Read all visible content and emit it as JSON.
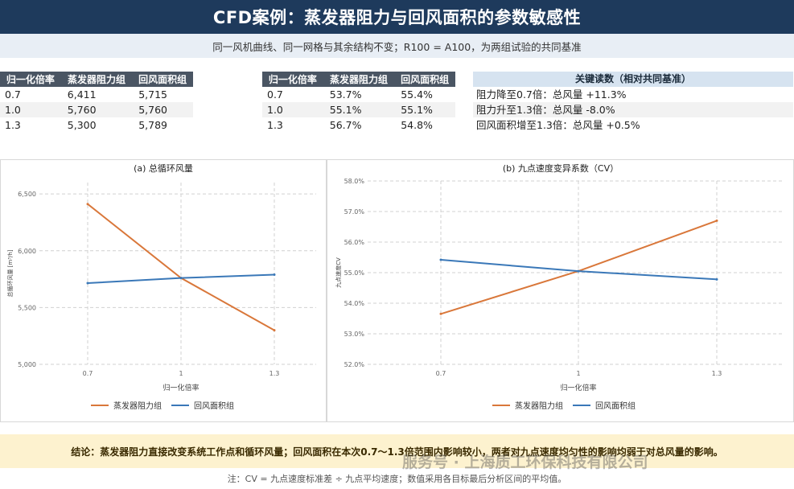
{
  "title": "CFD案例：蒸发器阻力与回风面积的参数敏感性",
  "subtitle": "同一风机曲线、同一网格与其余结构不变；R100 = A100，为两组试验的共同基准",
  "table_flow": {
    "headers": [
      "归一化倍率",
      "蒸发器阻力组",
      "回风面积组"
    ],
    "rows": [
      [
        "0.7",
        "6,411",
        "5,715"
      ],
      [
        "1.0",
        "5,760",
        "5,760"
      ],
      [
        "1.3",
        "5,300",
        "5,789"
      ]
    ]
  },
  "table_cv": {
    "headers": [
      "归一化倍率",
      "蒸发器阻力组",
      "回风面积组"
    ],
    "rows": [
      [
        "0.7",
        "53.7%",
        "55.4%"
      ],
      [
        "1.0",
        "55.1%",
        "55.1%"
      ],
      [
        "1.3",
        "56.7%",
        "54.8%"
      ]
    ]
  },
  "key_readings": {
    "title": "关键读数（相对共同基准）",
    "items": [
      "阻力降至0.7倍：总风量 +11.3%",
      "阻力升至1.3倍：总风量 -8.0%",
      "回风面积增至1.3倍：总风量 +0.5%"
    ]
  },
  "chart_data": [
    {
      "type": "line",
      "title": "(a) 总循环风量",
      "xlabel": "归一化倍率",
      "ylabel": "总循环风量 [m³/h]",
      "x": [
        0.7,
        1.0,
        1.3
      ],
      "x_ticks": [
        "0.7",
        "1",
        "1.3"
      ],
      "ylim": [
        5000,
        6600
      ],
      "y_ticks": [
        5000,
        5500,
        6000,
        6500
      ],
      "y_tick_labels": [
        "5,000",
        "5,500",
        "6,000",
        "6,500"
      ],
      "grid": true,
      "legend": "bottom",
      "series": [
        {
          "name": "蒸发器阻力组",
          "color": "#d9773a",
          "values": [
            6411,
            5760,
            5300
          ]
        },
        {
          "name": "回风面积组",
          "color": "#3a78b8",
          "values": [
            5715,
            5760,
            5789
          ]
        }
      ]
    },
    {
      "type": "line",
      "title": "(b) 九点速度变异系数（CV）",
      "xlabel": "归一化倍率",
      "ylabel": "九点速度CV",
      "x": [
        0.7,
        1.0,
        1.3
      ],
      "x_ticks": [
        "0.7",
        "1",
        "1.3"
      ],
      "ylim": [
        52.0,
        58.0
      ],
      "y_ticks": [
        52,
        53,
        54,
        55,
        56,
        57,
        58
      ],
      "y_tick_labels": [
        "52.0%",
        "53.0%",
        "54.0%",
        "55.0%",
        "56.0%",
        "57.0%",
        "58.0%"
      ],
      "grid": true,
      "legend": "bottom",
      "series": [
        {
          "name": "蒸发器阻力组",
          "color": "#d9773a",
          "values": [
            53.65,
            55.05,
            56.7
          ]
        },
        {
          "name": "回风面积组",
          "color": "#3a78b8",
          "values": [
            55.42,
            55.05,
            54.78
          ]
        }
      ]
    }
  ],
  "conclusion": "结论：蒸发器阻力直接改变系统工作点和循环风量；回风面积在本次0.7～1.3倍范围内影响较小，两者对九点速度均匀性的影响均弱于对总风量的影响。",
  "watermark": "服务号 · 上海质工环保科技有限公司",
  "note": "注：CV = 九点速度标准差 ÷ 九点平均速度；数值采用各目标最后分析区间的平均值。"
}
